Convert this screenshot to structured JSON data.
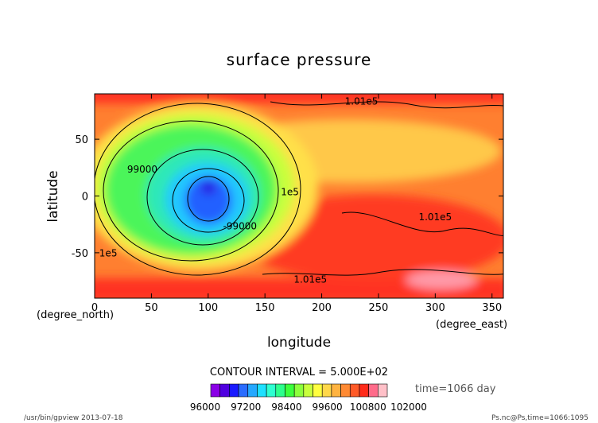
{
  "chart_data": {
    "type": "heatmap",
    "title": "surface pressure",
    "xlabel": "longitude",
    "ylabel": "latitude",
    "x_unit": "(degree_east)",
    "y_unit": "(degree_north)",
    "xlim": [
      0,
      360
    ],
    "ylim": [
      -90,
      90
    ],
    "x_ticks": [
      0,
      50,
      100,
      150,
      200,
      250,
      300,
      350
    ],
    "y_ticks": [
      -50,
      0,
      50
    ],
    "contour_interval_text": "CONTOUR INTERVAL = 5.000E+02",
    "time_text": "time=1066 day",
    "colorbar_labels": [
      "96000",
      "97200",
      "98400",
      "99600",
      "100800",
      "102000"
    ],
    "colorbar_colors": [
      "#8a00e6",
      "#4f00e0",
      "#1a1aff",
      "#2a6cff",
      "#25a8ff",
      "#1ee0ff",
      "#2effd0",
      "#2dff8c",
      "#3cff3c",
      "#8cff3c",
      "#c8ff3c",
      "#ffff40",
      "#ffd84a",
      "#ffb340",
      "#ff8a33",
      "#ff5a28",
      "#ff2a1a",
      "#ff6b8a",
      "#ffc0c8"
    ],
    "value_range": [
      96000,
      102000
    ],
    "low_center": {
      "lon": 95,
      "lat": 0,
      "value": 96000
    },
    "contour_labels": [
      {
        "text": "1.01e5",
        "lon": 235,
        "lat": 82
      },
      {
        "text": "99000",
        "lon": 42,
        "lat": 22
      },
      {
        "text": "1e5",
        "lon": 172,
        "lat": 2
      },
      {
        "text": "-99000",
        "lon": 128,
        "lat": -28
      },
      {
        "text": "1.01e5",
        "lon": 300,
        "lat": -20
      },
      {
        "text": "1e5",
        "lon": 12,
        "lat": -52
      },
      {
        "text": "1.01e5",
        "lon": 190,
        "lat": -75
      }
    ]
  },
  "footer": {
    "left": "/usr/bin/gpview  2013-07-18",
    "right": "Ps.nc@Ps,time=1066:1095"
  }
}
